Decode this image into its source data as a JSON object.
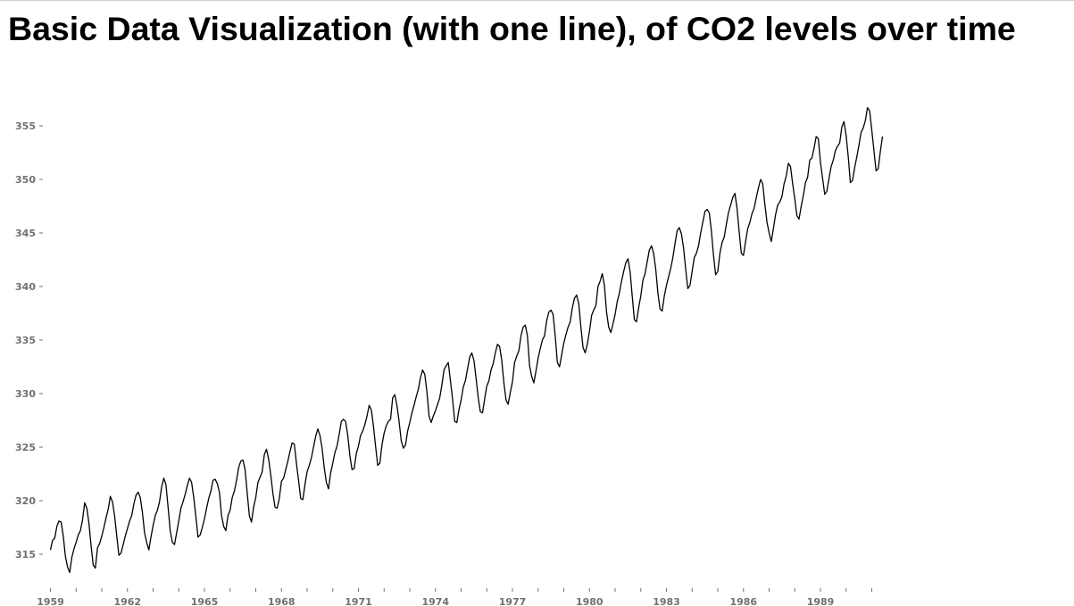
{
  "title": "Basic Data Visualization (with one line), of CO2 levels over time",
  "chart_data": {
    "type": "line",
    "title": "Basic Data Visualization (with one line), of CO2 levels over time",
    "xlabel": "",
    "ylabel": "",
    "x_start": "1959-01",
    "x_frequency": "monthly",
    "xlim": [
      1959.0,
      1991.0
    ],
    "ylim": [
      312,
      359
    ],
    "x_ticks": [
      "1959",
      "1962",
      "1965",
      "1968",
      "1971",
      "1974",
      "1977",
      "1980",
      "1983",
      "1986",
      "1989"
    ],
    "y_ticks": [
      315,
      320,
      325,
      330,
      335,
      340,
      345,
      350,
      355
    ],
    "grid": false,
    "legend": "none",
    "line_color": "#000000",
    "series": [
      {
        "values": [
          315.4,
          316.3,
          316.5,
          317.6,
          318.1,
          318.0,
          316.7,
          314.8,
          313.8,
          313.3,
          314.7,
          315.5,
          316.1,
          316.8,
          317.2,
          318.2,
          319.8,
          319.3,
          317.9,
          315.8,
          314.0,
          313.7,
          315.6,
          316.0,
          316.7,
          317.5,
          318.4,
          319.2,
          320.4,
          319.9,
          318.6,
          316.7,
          314.9,
          315.1,
          315.9,
          316.7,
          317.4,
          318.1,
          318.6,
          319.7,
          320.5,
          320.8,
          320.3,
          318.9,
          317.0,
          316.1,
          315.4,
          316.6,
          317.7,
          318.6,
          319.1,
          319.9,
          321.3,
          322.1,
          321.5,
          319.4,
          317.2,
          316.1,
          315.9,
          317.0,
          318.1,
          319.3,
          319.9,
          320.6,
          321.4,
          322.1,
          321.7,
          320.3,
          318.5,
          316.6,
          316.8,
          317.5,
          318.3,
          319.3,
          320.2,
          320.9,
          321.9,
          322.0,
          321.6,
          320.8,
          318.6,
          317.6,
          317.2,
          318.6,
          319.1,
          320.3,
          320.9,
          321.9,
          323.1,
          323.7,
          323.8,
          322.9,
          320.7,
          318.6,
          318.0,
          319.4,
          320.3,
          321.7,
          322.2,
          322.7,
          324.3,
          324.8,
          323.9,
          322.4,
          320.7,
          319.4,
          319.3,
          320.2,
          321.8,
          322.1,
          322.9,
          323.7,
          324.6,
          325.4,
          325.3,
          323.5,
          321.9,
          320.2,
          320.1,
          321.5,
          322.7,
          323.3,
          324.0,
          325.0,
          326.0,
          326.7,
          326.1,
          324.9,
          323.1,
          321.7,
          321.1,
          322.6,
          323.5,
          324.5,
          325.1,
          326.2,
          327.4,
          327.6,
          327.4,
          326.1,
          324.2,
          322.9,
          323.0,
          324.4,
          325.1,
          326.1,
          326.5,
          327.1,
          327.9,
          328.9,
          328.5,
          327.0,
          325.1,
          323.3,
          323.5,
          325.2,
          326.3,
          327.0,
          327.4,
          327.6,
          329.6,
          329.9,
          328.9,
          327.4,
          325.6,
          324.9,
          325.2,
          326.5,
          327.3,
          328.2,
          328.9,
          329.7,
          330.4,
          331.5,
          332.2,
          331.8,
          330.2,
          327.9,
          327.3,
          327.9,
          328.4,
          329.0,
          329.6,
          330.8,
          332.2,
          332.6,
          332.9,
          331.2,
          329.5,
          327.4,
          327.3,
          328.5,
          329.4,
          330.6,
          331.2,
          332.3,
          333.4,
          333.8,
          333.1,
          331.4,
          329.6,
          328.3,
          328.2,
          329.5,
          330.7,
          331.2,
          332.2,
          332.8,
          333.8,
          334.6,
          334.4,
          333.1,
          331.0,
          329.4,
          329.0,
          330.1,
          331.1,
          332.9,
          333.5,
          334.0,
          335.4,
          336.2,
          336.4,
          335.4,
          332.6,
          331.6,
          331.0,
          332.1,
          333.3,
          334.2,
          335.0,
          335.4,
          336.8,
          337.6,
          337.8,
          337.4,
          335.4,
          332.9,
          332.5,
          333.6,
          334.7,
          335.5,
          336.2,
          336.7,
          338.0,
          338.9,
          339.2,
          338.4,
          336.2,
          334.3,
          333.8,
          334.6,
          335.8,
          337.3,
          337.8,
          338.2,
          340.0,
          340.5,
          341.2,
          340.1,
          337.6,
          336.2,
          335.7,
          336.5,
          337.4,
          338.6,
          339.4,
          340.5,
          341.4,
          342.2,
          342.6,
          341.4,
          339.1,
          336.9,
          336.7,
          338.0,
          339.1,
          340.6,
          341.2,
          342.3,
          343.4,
          343.8,
          343.1,
          341.6,
          339.4,
          337.9,
          337.7,
          339.1,
          340.1,
          340.9,
          341.7,
          342.7,
          344.0,
          345.2,
          345.5,
          344.9,
          343.6,
          341.6,
          339.8,
          340.1,
          341.4,
          342.7,
          343.1,
          343.8,
          345.0,
          346.0,
          347.0,
          347.2,
          346.9,
          345.2,
          342.9,
          341.1,
          341.4,
          343.1,
          344.1,
          344.6,
          345.8,
          346.9,
          347.6,
          348.3,
          348.7,
          347.3,
          345.1,
          343.1,
          342.9,
          344.2,
          345.4,
          346.0,
          346.8,
          347.3,
          348.3,
          349.2,
          350.0,
          349.6,
          347.7,
          346.0,
          345.0,
          344.2,
          345.4,
          346.7,
          347.6,
          347.9,
          348.4,
          349.6,
          350.3,
          351.5,
          351.2,
          349.6,
          348.2,
          346.6,
          346.3,
          347.5,
          348.5,
          349.7,
          350.2,
          351.8,
          352.0,
          352.9,
          354.0,
          353.8,
          351.6,
          350.1,
          348.6,
          348.9,
          350.1,
          351.2,
          351.8,
          352.7,
          353.1,
          353.4,
          354.9,
          355.4,
          354.1,
          352.1,
          349.7,
          349.9,
          351.1,
          352.1,
          353.2,
          354.4,
          354.8,
          355.5,
          356.7,
          356.4,
          354.6,
          352.7,
          350.8,
          351.0,
          352.6,
          354.0
        ]
      }
    ]
  }
}
